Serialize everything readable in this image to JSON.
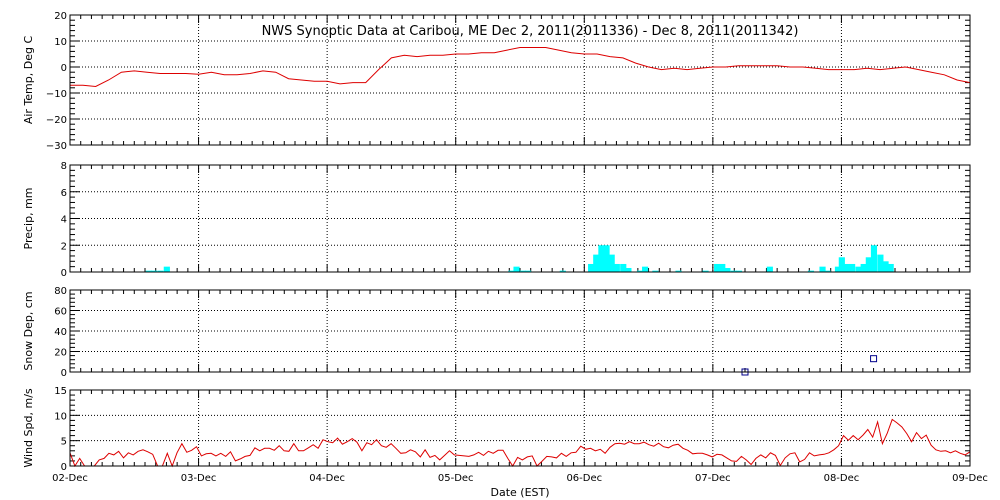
{
  "title": "NWS Synoptic Data at Caribou, ME   Dec  2, 2011(2011336) - Dec  8, 2011(2011342)",
  "xlabel": "Date (EST)",
  "x_ticks": [
    "02-Dec",
    "03-Dec",
    "04-Dec",
    "05-Dec",
    "06-Dec",
    "07-Dec",
    "08-Dec",
    "09-Dec"
  ],
  "colors": {
    "line": "#dd0000",
    "precip": "#00ffff",
    "snow": "#00008b",
    "axis": "#000000"
  },
  "chart_data": [
    {
      "type": "line",
      "ylabel": "Air Temp, Deg C",
      "ylim": [
        -30,
        20
      ],
      "yticks": [
        -30,
        -20,
        -10,
        0,
        10,
        20
      ],
      "xlim": [
        0,
        7
      ],
      "grid": true,
      "series": [
        {
          "x": [
            0,
            0.1,
            0.2,
            0.3,
            0.4,
            0.5,
            0.6,
            0.7,
            0.8,
            0.9,
            1.0,
            1.1,
            1.2,
            1.3,
            1.4,
            1.5,
            1.6,
            1.7,
            1.8,
            1.9,
            2.0,
            2.1,
            2.2,
            2.3,
            2.4,
            2.5,
            2.6,
            2.7,
            2.8,
            2.9,
            3.0,
            3.1,
            3.2,
            3.3,
            3.4,
            3.5,
            3.6,
            3.7,
            3.8,
            3.9,
            4.0,
            4.1,
            4.2,
            4.3,
            4.4,
            4.5,
            4.6,
            4.7,
            4.8,
            4.9,
            5.0,
            5.1,
            5.2,
            5.3,
            5.4,
            5.5,
            5.6,
            5.7,
            5.8,
            5.9,
            6.0,
            6.1,
            6.2,
            6.3,
            6.4,
            6.5,
            6.6,
            6.7,
            6.8,
            6.9,
            7.0
          ],
          "values": [
            -7,
            -7,
            -7.5,
            -5,
            -2,
            -1.5,
            -2,
            -2.5,
            -2.5,
            -2.5,
            -2.8,
            -2,
            -3,
            -3,
            -2.5,
            -1.5,
            -2,
            -4.5,
            -5,
            -5.5,
            -5.5,
            -6.5,
            -6,
            -6,
            -1,
            3.5,
            4.5,
            4,
            4.5,
            4.5,
            5,
            5,
            5.5,
            5.5,
            6.5,
            7.5,
            7.5,
            7.5,
            6.5,
            5.5,
            5,
            5,
            4,
            3.5,
            1.5,
            0,
            -1,
            -0.5,
            -1,
            -0.5,
            0,
            0,
            0.5,
            0.5,
            0.5,
            0.5,
            0,
            0,
            -0.5,
            -1,
            -1,
            -1,
            -0.5,
            -1,
            -0.5,
            0,
            -1,
            -2,
            -3,
            -5,
            -6
          ]
        }
      ]
    },
    {
      "type": "bar",
      "ylabel": "Precip, mm",
      "ylim": [
        0,
        8
      ],
      "yticks": [
        0,
        2,
        4,
        6,
        8
      ],
      "xlim": [
        0,
        7
      ],
      "grid": true,
      "series": [
        {
          "x": [
            0.61,
            0.65,
            0.7,
            0.75,
            3.43,
            3.47,
            3.52,
            3.56,
            3.83,
            4.05,
            4.09,
            4.13,
            4.17,
            4.21,
            4.25,
            4.3,
            4.34,
            4.43,
            4.47,
            4.55,
            4.73,
            4.94,
            5.03,
            5.07,
            5.11,
            5.16,
            5.2,
            5.44,
            5.76,
            5.85,
            5.89,
            5.97,
            6.0,
            6.04,
            6.08,
            6.13,
            6.17,
            6.21,
            6.25,
            6.3,
            6.34,
            6.38
          ],
          "values": [
            0.1,
            0.1,
            0.1,
            0.4,
            0.1,
            0.4,
            0.1,
            0.1,
            0.1,
            0.6,
            1.3,
            2.0,
            2.0,
            1.3,
            0.6,
            0.6,
            0.3,
            0.1,
            0.4,
            0.1,
            0.1,
            0.1,
            0.6,
            0.6,
            0.3,
            0.1,
            0.1,
            0.4,
            0.1,
            0.4,
            0.1,
            0.4,
            1.1,
            0.6,
            0.6,
            0.4,
            0.6,
            1.1,
            2.0,
            1.3,
            0.8,
            0.6
          ]
        }
      ]
    },
    {
      "type": "scatter",
      "ylabel": "Snow Dep, cm",
      "ylim": [
        0,
        80
      ],
      "yticks": [
        0,
        20,
        40,
        60,
        80
      ],
      "xlim": [
        0,
        7
      ],
      "grid": true,
      "series": [
        {
          "x": [
            5.25,
            6.25
          ],
          "values": [
            0,
            13
          ]
        }
      ]
    },
    {
      "type": "line",
      "ylabel": "Wind Spd, m/s",
      "ylim": [
        0,
        15
      ],
      "yticks": [
        0,
        5,
        10,
        15
      ],
      "xlim": [
        0,
        7
      ],
      "grid": true,
      "series": [
        {
          "values": [
            2.6,
            0,
            1.5,
            0,
            0,
            0,
            1.2,
            1.5,
            2.5,
            2.2,
            2.9,
            1.6,
            2.6,
            2.2,
            2.9,
            3.2,
            2.8,
            2.3,
            0,
            0,
            2.5,
            0,
            2.6,
            4.4,
            2.7,
            3.1,
            3.8,
            2,
            2.4,
            2.5,
            2,
            2.5,
            1.9,
            2.8,
            1,
            1.4,
            1.9,
            2.1,
            3.6,
            3,
            3.5,
            3.5,
            3.1,
            4,
            3,
            2.9,
            4.4,
            3,
            3,
            3.6,
            4.2,
            3.5,
            5.2,
            4.8,
            4.6,
            5.5,
            4.3,
            4.8,
            5.4,
            4.7,
            3,
            4.6,
            4.2,
            5.2,
            4,
            3.7,
            4.4,
            3.5,
            2.5,
            2.6,
            3.2,
            2.8,
            1.8,
            3.2,
            1.7,
            2.1,
            1.2,
            2.1,
            3,
            2.2,
            2.1,
            2,
            1.9,
            2.2,
            2.7,
            2.1,
            2.9,
            2.5,
            3.1,
            3.1,
            1.5,
            0,
            1.7,
            1.2,
            1.8,
            2,
            0,
            0.9,
            1.9,
            1.8,
            1.6,
            2.5,
            1.9,
            2.6,
            2.7,
            3.9,
            3.3,
            3.5,
            3,
            3.3,
            2.5,
            3.7,
            4.4,
            4.5,
            4.3,
            4.8,
            4.4,
            4.4,
            4.7,
            4.2,
            3.9,
            4.5,
            3.8,
            3.6,
            4.1,
            4.3,
            3.5,
            3.1,
            2.4,
            2.5,
            2.5,
            2.2,
            1.8,
            2.3,
            2.2,
            1.6,
            1,
            0.9,
            1.9,
            1.2,
            0.3,
            1.5,
            2.2,
            1.6,
            2.6,
            2.1,
            0.1,
            1.6,
            2.4,
            2.6,
            0.8,
            1.3,
            2.6,
            2,
            2.2,
            2.3,
            2.6,
            3.2,
            4,
            6,
            5.1,
            6,
            5.2,
            6.1,
            7.2,
            5.7,
            8.7,
            4.4,
            6.5,
            9.2,
            8.5,
            7.7,
            6.4,
            4.8,
            6.6,
            5.4,
            6.1,
            4.1,
            3.2,
            2.9,
            3,
            2.6,
            3,
            2.5,
            2.2,
            2.8
          ]
        }
      ]
    }
  ]
}
